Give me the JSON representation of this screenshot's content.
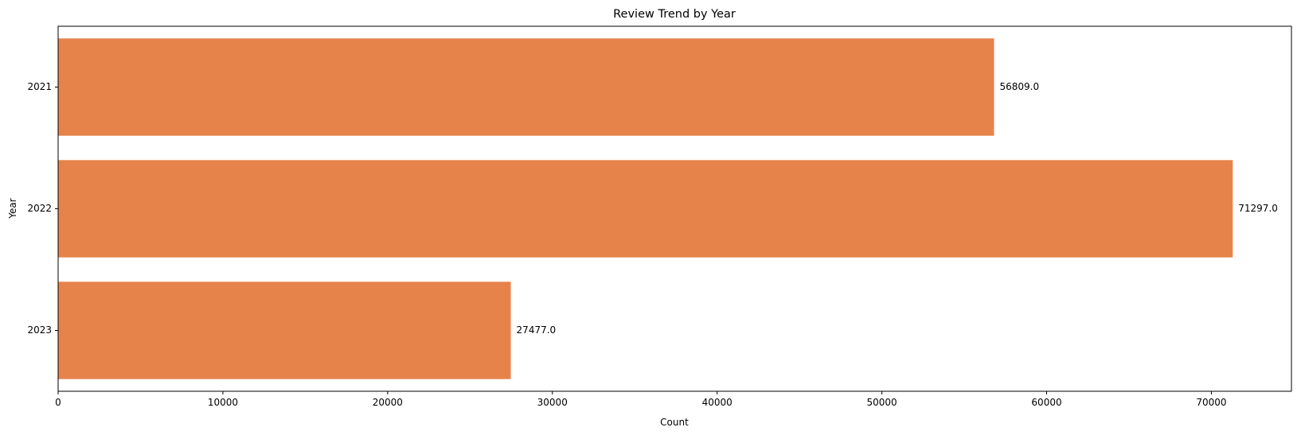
{
  "chart_data": {
    "type": "bar",
    "orientation": "horizontal",
    "title": "Review Trend by Year",
    "xlabel": "Count",
    "ylabel": "Year",
    "categories": [
      "2021",
      "2022",
      "2023"
    ],
    "values": [
      56809,
      71297,
      27477
    ],
    "data_labels": [
      "56809.0",
      "71297.0",
      "27477.0"
    ],
    "xlim": [
      0,
      74860
    ],
    "xticks": [
      0,
      10000,
      20000,
      30000,
      40000,
      50000,
      60000,
      70000
    ],
    "xtick_labels": [
      "0",
      "10000",
      "20000",
      "30000",
      "40000",
      "50000",
      "60000",
      "70000"
    ],
    "grid": false,
    "legend": "none",
    "bar_color": "#e6834b"
  }
}
